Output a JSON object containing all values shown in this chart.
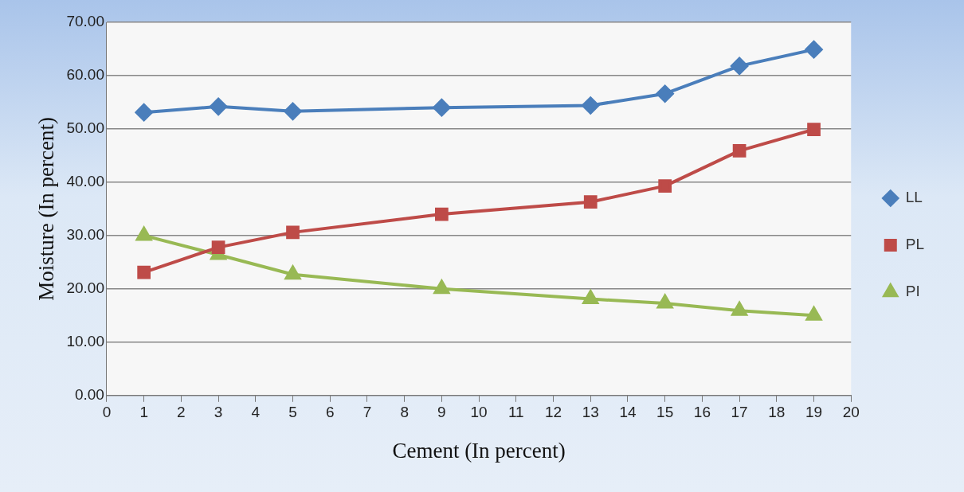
{
  "chart_data": {
    "type": "line",
    "xlabel": "Cement (In percent)",
    "ylabel": "Moisture (In percent)",
    "x": [
      1,
      3,
      5,
      9,
      13,
      15,
      17,
      19
    ],
    "series": [
      {
        "name": "LL",
        "color": "#4a7ebb",
        "marker": "diamond",
        "values": [
          53.1,
          54.2,
          53.3,
          54.0,
          54.4,
          56.6,
          61.8,
          64.9
        ]
      },
      {
        "name": "PL",
        "color": "#be4b48",
        "marker": "square",
        "values": [
          23.1,
          27.8,
          30.6,
          34.0,
          36.3,
          39.3,
          45.9,
          49.9
        ]
      },
      {
        "name": "PI",
        "color": "#98b954",
        "marker": "triangle",
        "values": [
          30.0,
          26.4,
          22.7,
          20.0,
          18.1,
          17.3,
          15.9,
          15.0
        ]
      }
    ],
    "xlim": [
      0,
      20
    ],
    "xticks": [
      0,
      1,
      2,
      3,
      4,
      5,
      6,
      7,
      8,
      9,
      10,
      11,
      12,
      13,
      14,
      15,
      16,
      17,
      18,
      19,
      20
    ],
    "ylim": [
      0,
      70
    ],
    "yticks": [
      {
        "value": 0,
        "label": "0.00"
      },
      {
        "value": 10,
        "label": "10.00"
      },
      {
        "value": 20,
        "label": "20.00"
      },
      {
        "value": 30,
        "label": "30.00"
      },
      {
        "value": 40,
        "label": "40.00"
      },
      {
        "value": 50,
        "label": "50.00"
      },
      {
        "value": 60,
        "label": "60.00"
      },
      {
        "value": 70,
        "label": "70.00"
      }
    ],
    "grid": "y",
    "legend": "right",
    "line_style": "solid"
  }
}
